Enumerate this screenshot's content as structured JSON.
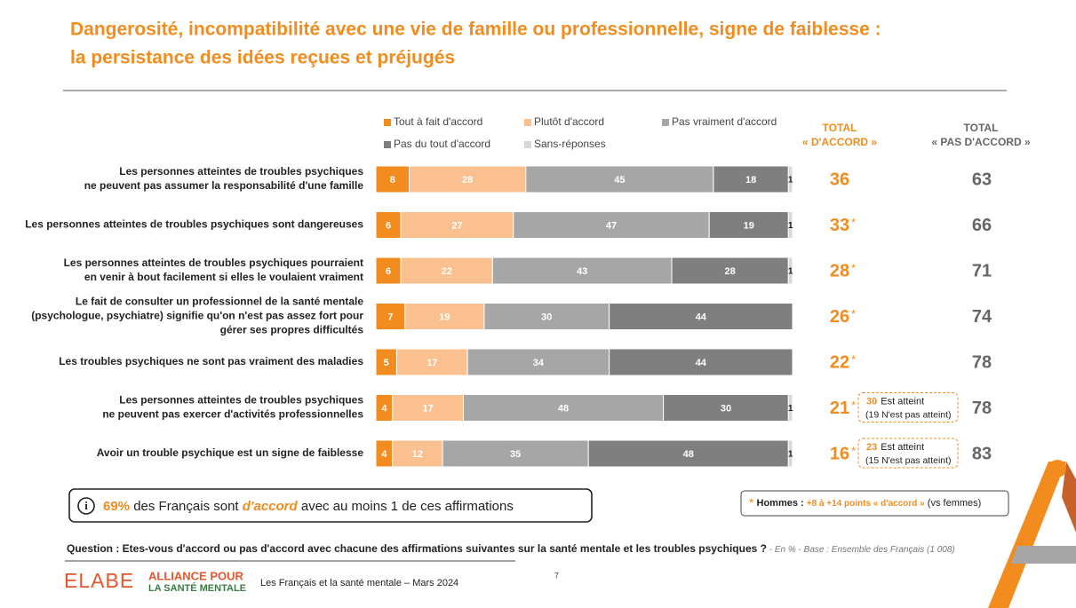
{
  "chart_data": {
    "type": "stacked-bar-horizontal",
    "title": [
      "Dangerosité, incompatibilité avec une vie de famille ou professionnelle, signe de faiblesse :",
      "la persistance des idées reçues et préjugés"
    ],
    "categories": [
      [
        "Les personnes atteintes de troubles psychiques",
        "ne peuvent pas assumer la responsabilité d'une famille"
      ],
      [
        "Les personnes atteintes de troubles psychiques sont dangereuses"
      ],
      [
        "Les personnes atteintes de troubles psychiques pourraient",
        "en venir à bout facilement si elles le voulaient vraiment"
      ],
      [
        "Le fait de consulter un professionnel de la santé mentale",
        "(psychologue, psychiatre) signifie qu'on n'est pas assez fort pour",
        "gérer ses propres difficultés"
      ],
      [
        "Les troubles psychiques ne sont pas vraiment des maladies"
      ],
      [
        "Les personnes atteintes de troubles psychiques",
        "ne peuvent pas exercer d'activités professionnelles"
      ],
      [
        "Avoir un trouble psychique est un signe de faiblesse"
      ]
    ],
    "xlim": [
      0,
      100
    ],
    "series": [
      {
        "name": "Tout à fait d'accord",
        "color": "#f28c1e",
        "label_color": "#ffffff",
        "values": [
          8,
          6,
          6,
          7,
          5,
          4,
          4
        ]
      },
      {
        "name": "Plutôt d'accord",
        "color": "#fac090",
        "label_color": "#ffffff",
        "values": [
          28,
          27,
          22,
          19,
          17,
          17,
          12
        ]
      },
      {
        "name": "Pas vraiment d'accord",
        "color": "#a6a6a6",
        "label_color": "#ffffff",
        "values": [
          45,
          47,
          43,
          30,
          34,
          48,
          35
        ]
      },
      {
        "name": "Pas du tout d'accord",
        "color": "#7f7f7f",
        "label_color": "#ffffff",
        "values": [
          18,
          19,
          28,
          44,
          44,
          30,
          48
        ]
      },
      {
        "name": "Sans-réponses",
        "color": "#d9d9d9",
        "label_color": "#222222",
        "values": [
          1,
          1,
          1,
          0,
          0,
          1,
          1
        ]
      }
    ],
    "total_accord": {
      "header": [
        "TOTAL",
        "« D'ACCORD »"
      ],
      "values": [
        36,
        33,
        28,
        26,
        22,
        21,
        16
      ],
      "marker": "*",
      "marked": [
        false,
        true,
        true,
        true,
        true,
        true,
        true
      ],
      "notes": [
        null,
        null,
        null,
        null,
        null,
        {
          "value": 30,
          "text": "Est atteint",
          "sub": "(19 N'est pas atteint)"
        },
        {
          "value": 23,
          "text": "Est atteint",
          "sub": "(15 N'est pas atteint)"
        }
      ]
    },
    "total_pas_accord": {
      "header": [
        "TOTAL",
        "« PAS D'ACCORD »"
      ],
      "values": [
        63,
        66,
        71,
        74,
        78,
        78,
        83
      ]
    },
    "callout": {
      "value": "69%",
      "text1": " des Français sont ",
      "emphasis": "d'accord",
      "text2": " avec au moins 1 de ces affirmations"
    },
    "footnote": {
      "marker": "*",
      "label": " Hommes : ",
      "value": "+8 à +14 points « d'accord »",
      "text": " (vs femmes)"
    },
    "question": "Question : Etes-vous d'accord ou pas d'accord avec chacune des affirmations suivantes sur la santé mentale et les troubles psychiques ?",
    "base": " - En % - Base : Ensemble des Français (1 008)",
    "logo_elabe": "ELABE",
    "logo_alliance": [
      "ALLIANCE POUR",
      "LA SANTÉ MENTALE"
    ],
    "source": "Les Français et la santé mentale – Mars 2024",
    "page": "7"
  }
}
